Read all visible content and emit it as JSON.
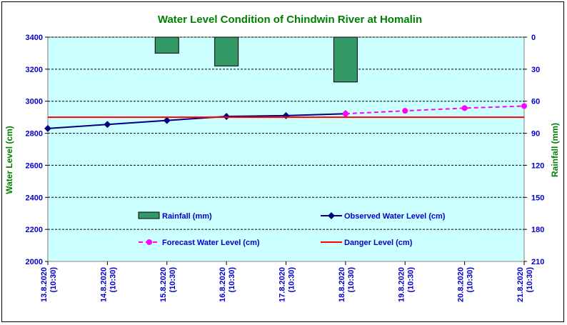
{
  "chart_data": {
    "type": "line",
    "title": "Water Level Condition  of  Chindwin  River  at  Homalin",
    "ylabel": "Water Level (cm)",
    "y2label": "Rainfall (mm)",
    "ylim": [
      2000,
      3400
    ],
    "y2lim": [
      0,
      210
    ],
    "y2_inverted": true,
    "yticks": [
      2000,
      2200,
      2400,
      2600,
      2800,
      3000,
      3200,
      3400
    ],
    "y2ticks": [
      0,
      30,
      60,
      90,
      120,
      150,
      180,
      210
    ],
    "grid": true,
    "categories": [
      {
        "date": "13.8.2020",
        "time": "(10:30)"
      },
      {
        "date": "14.8.2020",
        "time": "(10:30)"
      },
      {
        "date": "15.8.2020",
        "time": "(10:30)"
      },
      {
        "date": "16.8.2020",
        "time": "(10:30)"
      },
      {
        "date": "17.8.2020",
        "time": "(10:30)"
      },
      {
        "date": "18.8.2020",
        "time": "(10:30)"
      },
      {
        "date": "19.8.2020",
        "time": "(10:30)"
      },
      {
        "date": "20.8.2020",
        "time": "(10:30)"
      },
      {
        "date": "21.8.2020",
        "time": "(10:30)"
      }
    ],
    "series": [
      {
        "name": "Rainfall (mm)",
        "kind": "bar",
        "axis": "right",
        "color": "#339966",
        "values": [
          null,
          null,
          15,
          27,
          null,
          42,
          null,
          null,
          null
        ]
      },
      {
        "name": "Observed Water Level (cm)",
        "kind": "line",
        "axis": "left",
        "color": "#000080",
        "values": [
          2830,
          2855,
          2880,
          2905,
          2910,
          2922,
          null,
          null,
          null
        ]
      },
      {
        "name": "Forecast Water Level (cm)",
        "kind": "dashed-line",
        "axis": "left",
        "color": "#ff00ff",
        "values": [
          null,
          null,
          null,
          null,
          null,
          2922,
          2940,
          2957,
          2970
        ]
      },
      {
        "name": "Danger Level (cm)",
        "kind": "line",
        "axis": "left",
        "color": "#ff0000",
        "values": [
          2900,
          2900,
          2900,
          2900,
          2900,
          2900,
          2900,
          2900,
          2900
        ]
      }
    ],
    "colors": {
      "plot_background": "#ccffff",
      "title": "#008000",
      "ticks": "#0000cc"
    }
  }
}
